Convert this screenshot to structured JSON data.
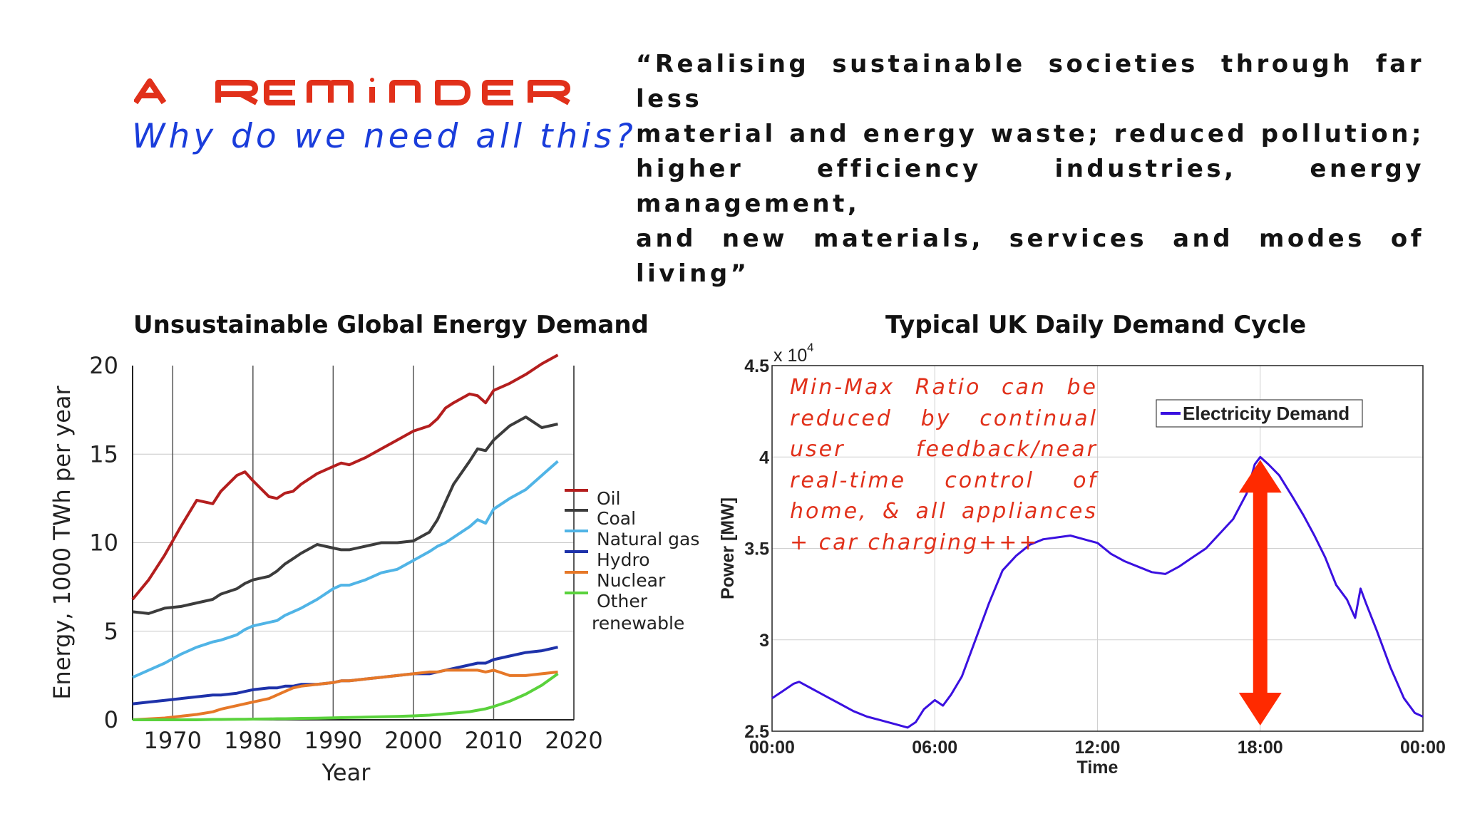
{
  "slide": {
    "title": "A REMINDER",
    "subtitle": "Why do we need all this?",
    "quote_lines": [
      "“Realising sustainable societies through far less",
      "material and energy waste; reduced pollution;",
      "higher efficiency industries, energy management,",
      "and new materials, services and modes of living”"
    ],
    "colors": {
      "title": "#e1301a",
      "subtitle": "#1a3ddb",
      "annotation": "#e1301a",
      "arrow": "#ff2a00"
    }
  },
  "chart_data": [
    {
      "type": "line",
      "title": "Unsustainable Global Energy Demand",
      "xlabel": "Year",
      "ylabel": "Energy, 1000 TWh per year",
      "xlim": [
        1965,
        2020
      ],
      "ylim": [
        0,
        20
      ],
      "xticks": [
        "1970",
        "1980",
        "1990",
        "2000",
        "2010",
        "2020"
      ],
      "yticks": [
        "0",
        "5",
        "10",
        "15",
        "20"
      ],
      "grid": "vertical",
      "legend_position": "right",
      "x": [
        1965,
        1967,
        1969,
        1971,
        1973,
        1975,
        1976,
        1978,
        1979,
        1980,
        1982,
        1983,
        1984,
        1985,
        1986,
        1988,
        1990,
        1991,
        1992,
        1994,
        1996,
        1998,
        2000,
        2002,
        2003,
        2004,
        2005,
        2007,
        2008,
        2009,
        2010,
        2012,
        2014,
        2016,
        2018
      ],
      "series": [
        {
          "name": "Oil",
          "color": "#b41e1e",
          "values": [
            6.8,
            7.9,
            9.3,
            10.9,
            12.4,
            12.2,
            12.9,
            13.8,
            14.0,
            13.5,
            12.6,
            12.5,
            12.8,
            12.9,
            13.3,
            13.9,
            14.3,
            14.5,
            14.4,
            14.8,
            15.3,
            15.8,
            16.3,
            16.6,
            17.0,
            17.6,
            17.9,
            18.4,
            18.3,
            17.9,
            18.6,
            19.0,
            19.5,
            20.1,
            20.6
          ]
        },
        {
          "name": "Coal",
          "color": "#3c3c3c",
          "values": [
            6.1,
            6.0,
            6.3,
            6.4,
            6.6,
            6.8,
            7.1,
            7.4,
            7.7,
            7.9,
            8.1,
            8.4,
            8.8,
            9.1,
            9.4,
            9.9,
            9.7,
            9.6,
            9.6,
            9.8,
            10.0,
            10.0,
            10.1,
            10.6,
            11.3,
            12.3,
            13.3,
            14.6,
            15.3,
            15.2,
            15.8,
            16.6,
            17.1,
            16.5,
            16.7
          ]
        },
        {
          "name": "Natural gas",
          "color": "#50b4e6",
          "values": [
            2.4,
            2.8,
            3.2,
            3.7,
            4.1,
            4.4,
            4.5,
            4.8,
            5.1,
            5.3,
            5.5,
            5.6,
            5.9,
            6.1,
            6.3,
            6.8,
            7.4,
            7.6,
            7.6,
            7.9,
            8.3,
            8.5,
            9.0,
            9.5,
            9.8,
            10.0,
            10.3,
            10.9,
            11.3,
            11.1,
            11.9,
            12.5,
            13.0,
            13.8,
            14.6
          ]
        },
        {
          "name": "Hydro",
          "color": "#1e32aa",
          "values": [
            0.9,
            1.0,
            1.1,
            1.2,
            1.3,
            1.4,
            1.4,
            1.5,
            1.6,
            1.7,
            1.8,
            1.8,
            1.9,
            1.9,
            2.0,
            2.0,
            2.1,
            2.2,
            2.2,
            2.3,
            2.4,
            2.5,
            2.6,
            2.6,
            2.7,
            2.8,
            2.9,
            3.1,
            3.2,
            3.2,
            3.4,
            3.6,
            3.8,
            3.9,
            4.1
          ]
        },
        {
          "name": "Nuclear",
          "color": "#e67828",
          "values": [
            0.0,
            0.05,
            0.1,
            0.2,
            0.3,
            0.45,
            0.6,
            0.8,
            0.9,
            1.0,
            1.2,
            1.4,
            1.6,
            1.8,
            1.9,
            2.0,
            2.1,
            2.2,
            2.2,
            2.3,
            2.4,
            2.5,
            2.6,
            2.7,
            2.7,
            2.8,
            2.8,
            2.8,
            2.8,
            2.7,
            2.8,
            2.5,
            2.5,
            2.6,
            2.7
          ]
        },
        {
          "name": "Other renewable",
          "color": "#5ad23c",
          "values": [
            0.0,
            0.0,
            0.0,
            0.0,
            0.0,
            0.02,
            0.02,
            0.03,
            0.03,
            0.04,
            0.05,
            0.06,
            0.06,
            0.07,
            0.08,
            0.09,
            0.11,
            0.12,
            0.13,
            0.15,
            0.17,
            0.19,
            0.22,
            0.26,
            0.3,
            0.34,
            0.38,
            0.46,
            0.54,
            0.62,
            0.75,
            1.05,
            1.45,
            1.95,
            2.6
          ]
        }
      ],
      "legend_lines": [
        "Oil",
        "Coal",
        "Natural gas",
        "Hydro",
        "Nuclear",
        "Other",
        "renewable"
      ]
    },
    {
      "type": "line",
      "title": "Typical UK Daily Demand Cycle",
      "xlabel": "Time",
      "ylabel": "Power [MW]",
      "y_multiplier": "x 10",
      "y_multiplier_exp": "4",
      "xlim": [
        0,
        24
      ],
      "ylim": [
        2.5,
        4.5
      ],
      "xticks": [
        "00:00",
        "06:00",
        "12:00",
        "18:00",
        "00:00"
      ],
      "yticks": [
        "2.5",
        "3",
        "3.5",
        "4",
        "4.5"
      ],
      "grid": "both",
      "legend_position": "top-right",
      "annotation_lines": [
        "Min-Max Ratio can be",
        "reduced by continual",
        "user feedback/near",
        "real-time control of",
        "home, & all appliances",
        "+ car charging+++"
      ],
      "arrow_range": [
        2.5,
        4.0
      ],
      "arrow_x": 18,
      "series": [
        {
          "name": "Electricity Demand",
          "color": "#3a10e0",
          "x": [
            0,
            0.4,
            0.8,
            1.0,
            1.5,
            2.0,
            2.5,
            3.0,
            3.5,
            4.0,
            4.5,
            5.0,
            5.3,
            5.6,
            6.0,
            6.3,
            6.6,
            7.0,
            7.5,
            8.0,
            8.5,
            9.0,
            9.5,
            10.0,
            10.5,
            11.0,
            11.5,
            12.0,
            12.5,
            13.0,
            13.5,
            14.0,
            14.5,
            15.0,
            15.5,
            16.0,
            16.5,
            17.0,
            17.5,
            17.8,
            18.0,
            18.3,
            18.7,
            19.2,
            19.6,
            20.0,
            20.4,
            20.8,
            21.2,
            21.5,
            21.7,
            21.9,
            22.3,
            22.8,
            23.3,
            23.7,
            24.0
          ],
          "values": [
            2.68,
            2.72,
            2.76,
            2.77,
            2.73,
            2.69,
            2.65,
            2.61,
            2.58,
            2.56,
            2.54,
            2.52,
            2.55,
            2.62,
            2.67,
            2.64,
            2.7,
            2.8,
            3.0,
            3.2,
            3.38,
            3.46,
            3.52,
            3.55,
            3.56,
            3.57,
            3.55,
            3.53,
            3.47,
            3.43,
            3.4,
            3.37,
            3.36,
            3.4,
            3.45,
            3.5,
            3.58,
            3.66,
            3.8,
            3.96,
            4.0,
            3.96,
            3.9,
            3.78,
            3.68,
            3.57,
            3.45,
            3.3,
            3.22,
            3.12,
            3.28,
            3.2,
            3.05,
            2.85,
            2.68,
            2.6,
            2.58
          ]
        }
      ]
    }
  ]
}
